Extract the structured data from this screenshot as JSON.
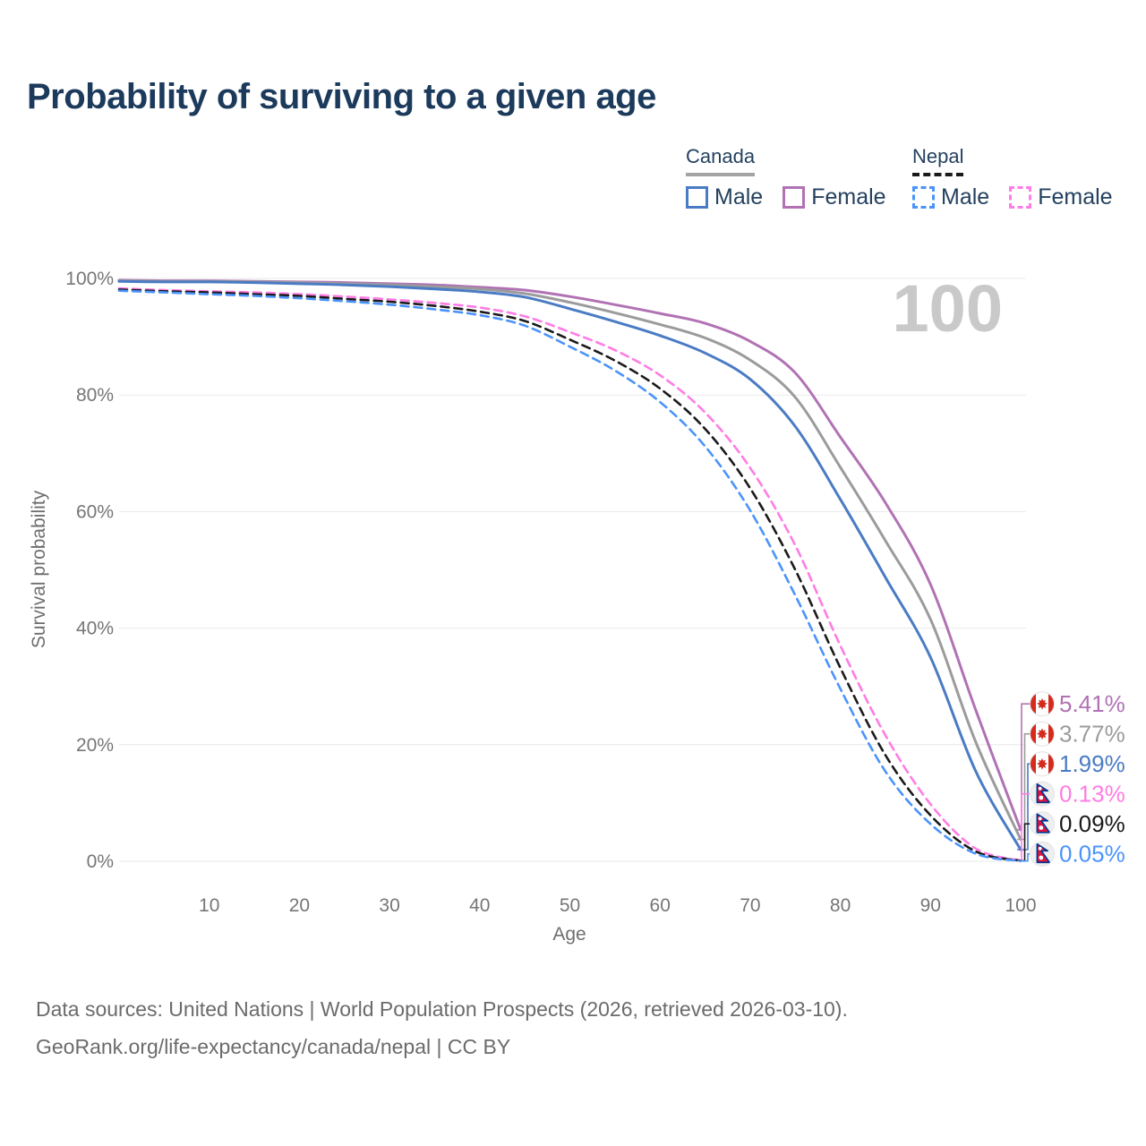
{
  "title": "Probability of surviving to a given age",
  "age_indicator": "100",
  "legend": {
    "groups": [
      {
        "country": "Canada",
        "underline": "solid",
        "underline_color": "#a3a3a3",
        "items": [
          {
            "label": "Male",
            "color": "#4a7bc4",
            "dash": "solid"
          },
          {
            "label": "Female",
            "color": "#b172b4",
            "dash": "solid"
          }
        ]
      },
      {
        "country": "Nepal",
        "underline": "dashed",
        "underline_color": "#1a1a1a",
        "items": [
          {
            "label": "Male",
            "color": "#4b93fb",
            "dash": "dashed"
          },
          {
            "label": "Female",
            "color": "#ff7ce4",
            "dash": "dashed"
          }
        ]
      }
    ]
  },
  "chart_data": {
    "type": "line",
    "title": "Probability of surviving to a given age",
    "xlabel": "Age",
    "ylabel": "Survival probability",
    "xlim": [
      0,
      100
    ],
    "ylim": [
      0,
      100
    ],
    "x_ticks": [
      10,
      20,
      30,
      40,
      50,
      60,
      70,
      80,
      90,
      100
    ],
    "y_tick_values": [
      0,
      20,
      40,
      60,
      80,
      100
    ],
    "y_tick_labels": [
      "0%",
      "20%",
      "40%",
      "60%",
      "80%",
      "100%"
    ],
    "grid": "horizontal",
    "legend_position": "top-right",
    "ages": [
      0,
      5,
      10,
      15,
      20,
      25,
      30,
      35,
      40,
      45,
      50,
      55,
      60,
      65,
      70,
      75,
      80,
      85,
      90,
      95,
      100
    ],
    "series": [
      {
        "id": "canada-female",
        "country": "Canada",
        "color": "#b172b4",
        "dash": "solid",
        "flag": "canada",
        "end_label": "5.41%",
        "values": [
          99.7,
          99.6,
          99.6,
          99.5,
          99.4,
          99.3,
          99.1,
          98.9,
          98.5,
          98.0,
          96.9,
          95.5,
          94.0,
          92.3,
          89.2,
          83.8,
          72.8,
          61.5,
          47.5,
          26.0,
          5.41
        ]
      },
      {
        "id": "canada-both-sexes",
        "country": "Canada",
        "color": "#9b9b9b",
        "dash": "solid",
        "flag": "canada",
        "end_label": "3.77%",
        "values": [
          99.6,
          99.5,
          99.5,
          99.4,
          99.3,
          99.1,
          98.9,
          98.6,
          98.2,
          97.4,
          95.9,
          94.1,
          92.1,
          89.8,
          86.0,
          79.6,
          67.6,
          55.0,
          41.5,
          20.5,
          3.77
        ]
      },
      {
        "id": "canada-male",
        "country": "Canada",
        "color": "#4a7bc4",
        "dash": "solid",
        "flag": "canada",
        "end_label": "1.99%",
        "values": [
          99.5,
          99.4,
          99.4,
          99.3,
          99.1,
          98.9,
          98.6,
          98.2,
          97.7,
          96.8,
          94.8,
          92.6,
          90.2,
          87.2,
          82.7,
          74.6,
          62.1,
          48.7,
          35.0,
          15.5,
          1.99
        ]
      },
      {
        "id": "nepal-female",
        "country": "Nepal",
        "color": "#ff7ce4",
        "dash": "dashed",
        "flag": "nepal",
        "end_label": "0.13%",
        "values": [
          98.3,
          98.0,
          97.8,
          97.6,
          97.3,
          96.9,
          96.4,
          95.8,
          95.0,
          93.5,
          90.8,
          87.7,
          83.4,
          77.0,
          67.5,
          54.2,
          37.0,
          21.6,
          9.8,
          2.2,
          0.13
        ]
      },
      {
        "id": "nepal-both-sexes",
        "country": "Nepal",
        "color": "#1a1a1a",
        "dash": "dashed",
        "flag": "nepal",
        "end_label": "0.09%",
        "values": [
          98.1,
          97.8,
          97.6,
          97.3,
          97.0,
          96.5,
          96.0,
          95.3,
          94.3,
          92.7,
          89.5,
          85.9,
          81.1,
          74.2,
          64.0,
          50.0,
          33.2,
          18.2,
          7.9,
          1.7,
          0.09
        ]
      },
      {
        "id": "nepal-male",
        "country": "Nepal",
        "color": "#4b93fb",
        "dash": "dashed",
        "flag": "nepal",
        "end_label": "0.05%",
        "values": [
          97.9,
          97.6,
          97.3,
          97.0,
          96.6,
          96.1,
          95.5,
          94.7,
          93.7,
          91.9,
          88.3,
          84.2,
          78.8,
          71.2,
          60.2,
          45.6,
          29.6,
          15.4,
          6.4,
          1.3,
          0.05
        ]
      }
    ]
  },
  "footer": {
    "line1": "Data sources: United Nations | World Population Prospects (2026, retrieved 2026-03-10).",
    "line2": "GeoRank.org/life-expectancy/canada/nepal | CC BY"
  }
}
